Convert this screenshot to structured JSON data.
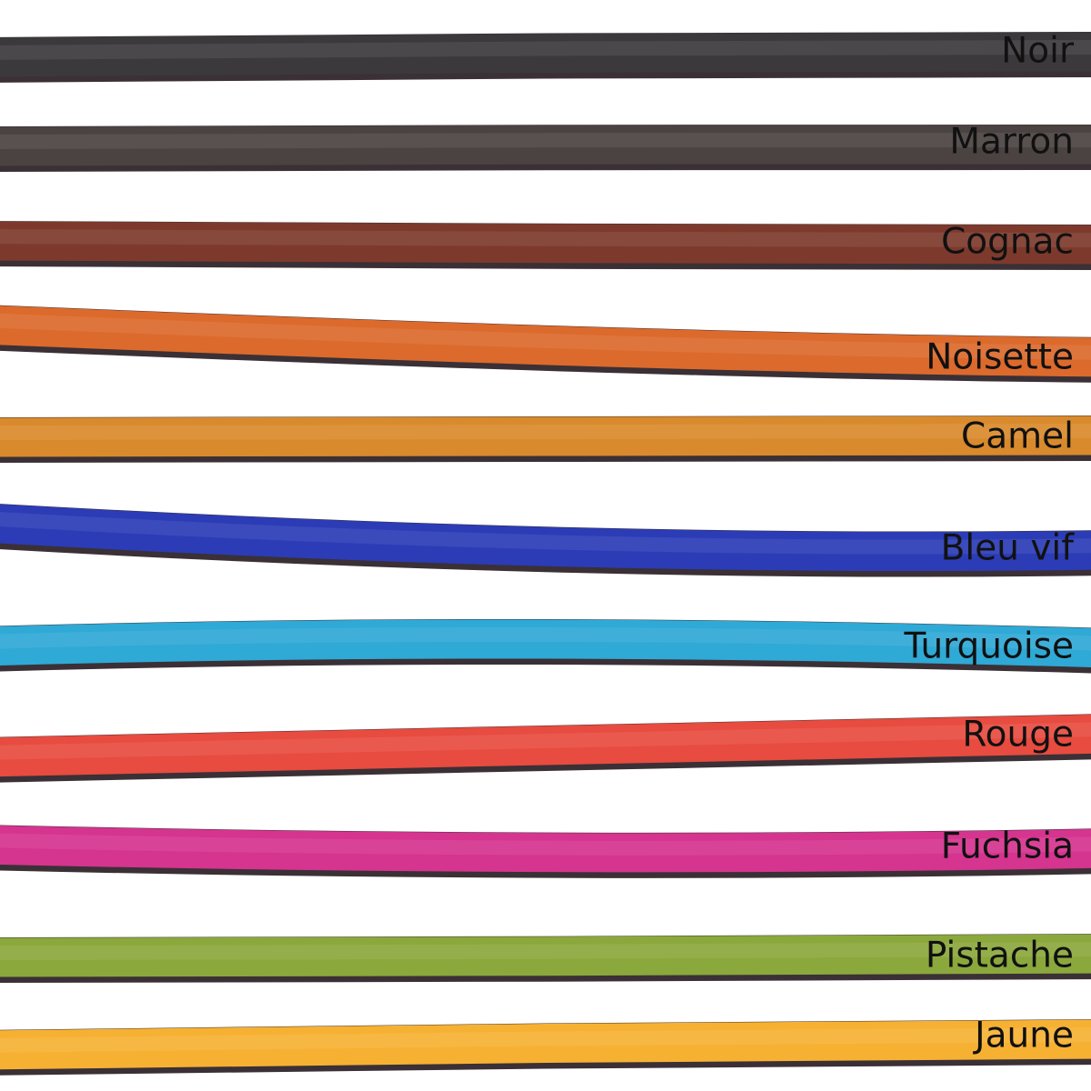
{
  "swatches": [
    {
      "label": "Noir"
    },
    {
      "label": "Marron"
    },
    {
      "label": "Cognac"
    },
    {
      "label": "Noisette"
    },
    {
      "label": "Camel"
    },
    {
      "label": "Bleu vif"
    },
    {
      "label": "Turquoise"
    },
    {
      "label": "Rouge"
    },
    {
      "label": "Fuchsia"
    },
    {
      "label": "Pistache"
    },
    {
      "label": "Jaune"
    }
  ]
}
